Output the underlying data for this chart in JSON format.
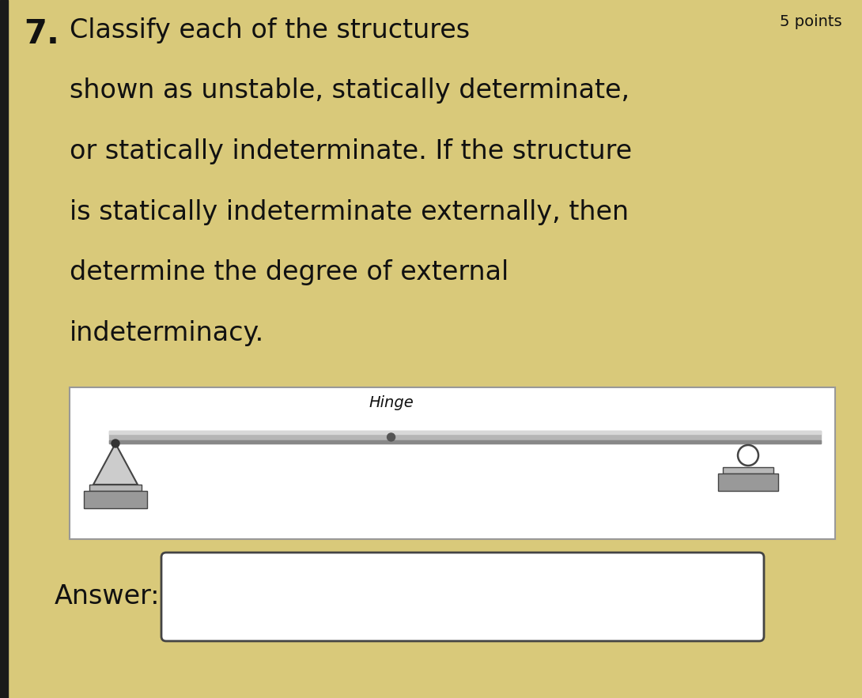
{
  "background_color": "#d9c97a",
  "title_number": "7.",
  "title_text_lines": [
    "Classify each of the structures",
    "shown as unstable, statically determinate,",
    "or statically indeterminate. If the structure",
    "is statically indeterminate externally, then",
    "determine the degree of external",
    "indeterminacy."
  ],
  "points_text": "5 points",
  "hinge_label": "Hinge",
  "answer_label": "Answer:",
  "text_color": "#111111",
  "border_color": "#222222",
  "diagram_border": "#999999",
  "beam_mid": "#b5b5b5",
  "beam_light": "#d8d8d8",
  "beam_dark": "#888888",
  "support_fill": "#b8b8b8",
  "support_edge": "#444444",
  "ground_fill": "#999999",
  "ground_edge": "#444444",
  "roller_fill": "#ffffff",
  "roller_edge": "#444444",
  "answer_border": "#444444"
}
